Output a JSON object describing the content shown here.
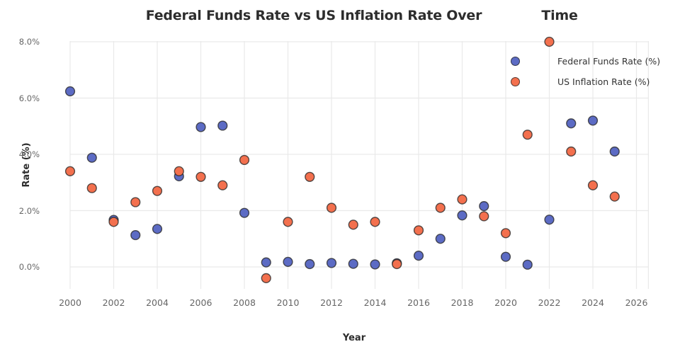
{
  "title": {
    "part1": "Federal Funds Rate vs US Inflation Rate Over",
    "part2": "Time"
  },
  "chart_data": {
    "type": "scatter",
    "title": "Federal Funds Rate vs US Inflation Rate Over Time",
    "xlabel": "Year",
    "ylabel": "Rate (%)",
    "x": [
      2000,
      2001,
      2002,
      2003,
      2004,
      2005,
      2006,
      2007,
      2008,
      2009,
      2010,
      2011,
      2012,
      2013,
      2014,
      2015,
      2016,
      2017,
      2018,
      2019,
      2020,
      2021,
      2022,
      2023,
      2024,
      2025
    ],
    "series": [
      {
        "name": "Federal Funds Rate (%)",
        "color": "#5c6bc4",
        "values": [
          6.24,
          3.88,
          1.67,
          1.13,
          1.35,
          3.22,
          4.97,
          5.02,
          1.92,
          0.16,
          0.18,
          0.1,
          0.14,
          0.11,
          0.09,
          0.13,
          0.4,
          1.0,
          1.83,
          2.16,
          0.36,
          0.08,
          1.68,
          5.1,
          5.2,
          4.1
        ]
      },
      {
        "name": "US Inflation Rate (%)",
        "color": "#f3704e",
        "values": [
          3.4,
          2.8,
          1.6,
          2.3,
          2.7,
          3.4,
          3.2,
          2.9,
          3.8,
          -0.4,
          1.6,
          3.2,
          2.1,
          1.5,
          1.6,
          0.1,
          1.3,
          2.1,
          2.4,
          1.8,
          1.2,
          4.7,
          8.0,
          4.1,
          2.9,
          2.5
        ]
      }
    ],
    "x_ticks": [
      2000,
      2002,
      2004,
      2006,
      2008,
      2010,
      2012,
      2014,
      2016,
      2018,
      2020,
      2022,
      2024,
      2026
    ],
    "y_ticks": [
      "0.0%",
      "2.0%",
      "4.0%",
      "6.0%",
      "8.0%"
    ],
    "y_tick_values": [
      0,
      2,
      4,
      6,
      8
    ],
    "xlim": [
      2000,
      2026.57
    ],
    "ylim": [
      -0.78,
      8.03
    ],
    "grid": true,
    "legend_position": "upper right",
    "marker_edge_color": "#282828",
    "grid_color": "#e9e9e9"
  }
}
